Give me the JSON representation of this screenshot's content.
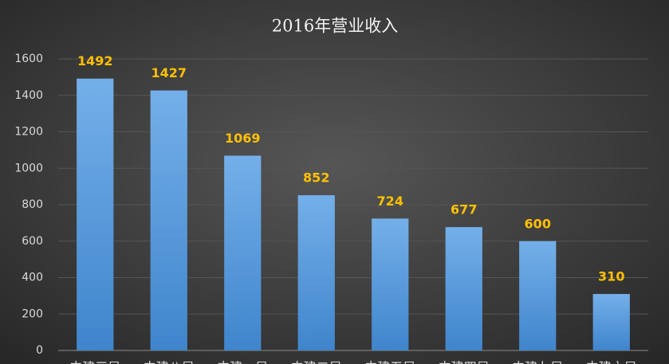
{
  "chart_data": {
    "type": "bar",
    "title": "2016年营业收入",
    "categories": [
      "中建三局",
      "中建八局",
      "中建一局",
      "中建二局",
      "中建五局",
      "中建四局",
      "中建七局",
      "中建六局"
    ],
    "values": [
      1492,
      1427,
      1069,
      852,
      724,
      677,
      600,
      310
    ],
    "color": "#5b9bd5",
    "ylim": [
      0,
      1600
    ],
    "yticks": [
      0,
      200,
      400,
      600,
      800,
      1000,
      1200,
      1400,
      1600
    ],
    "grid": true
  }
}
